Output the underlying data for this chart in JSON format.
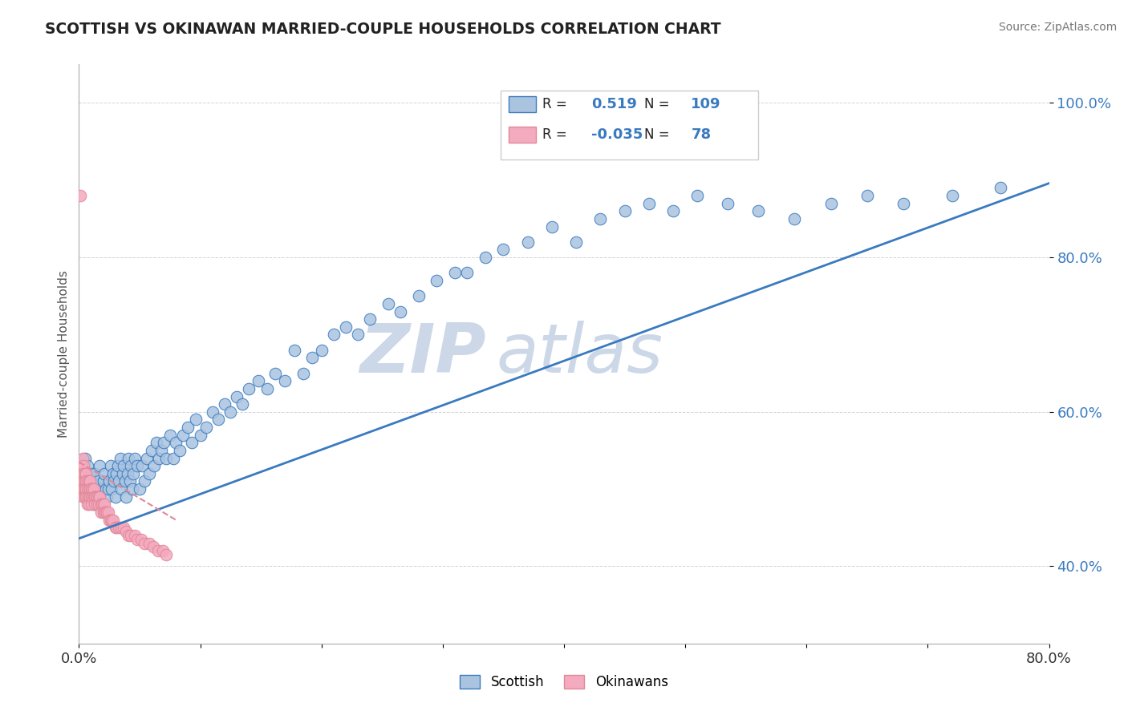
{
  "title": "SCOTTISH VS OKINAWAN MARRIED-COUPLE HOUSEHOLDS CORRELATION CHART",
  "source": "Source: ZipAtlas.com",
  "ylabel": "Married-couple Households",
  "y_ticks": [
    "40.0%",
    "60.0%",
    "80.0%",
    "100.0%"
  ],
  "y_tick_vals": [
    0.4,
    0.6,
    0.8,
    1.0
  ],
  "xlim": [
    0.0,
    0.8
  ],
  "ylim": [
    0.3,
    1.05
  ],
  "r_scottish": 0.519,
  "n_scottish": 109,
  "r_okinawan": -0.035,
  "n_okinawan": 78,
  "scottish_color": "#aac4e0",
  "okinawan_color": "#f4aabf",
  "trend_scottish_color": "#3a7abf",
  "trend_okinawan_color": "#e08898",
  "watermark": "ZIPatlas",
  "watermark_color": "#ccd8e8",
  "scottish_trend_x": [
    0.0,
    0.8
  ],
  "scottish_trend_y": [
    0.436,
    0.896
  ],
  "okinawan_trend_x": [
    0.0,
    0.08
  ],
  "okinawan_trend_y": [
    0.535,
    0.46
  ],
  "scottish_x": [
    0.005,
    0.006,
    0.007,
    0.008,
    0.009,
    0.01,
    0.01,
    0.011,
    0.012,
    0.013,
    0.014,
    0.015,
    0.016,
    0.017,
    0.018,
    0.019,
    0.02,
    0.021,
    0.022,
    0.023,
    0.024,
    0.025,
    0.026,
    0.027,
    0.028,
    0.029,
    0.03,
    0.031,
    0.032,
    0.033,
    0.034,
    0.035,
    0.036,
    0.037,
    0.038,
    0.039,
    0.04,
    0.041,
    0.042,
    0.043,
    0.044,
    0.045,
    0.046,
    0.048,
    0.05,
    0.052,
    0.054,
    0.056,
    0.058,
    0.06,
    0.062,
    0.064,
    0.066,
    0.068,
    0.07,
    0.072,
    0.075,
    0.078,
    0.08,
    0.083,
    0.086,
    0.09,
    0.093,
    0.096,
    0.1,
    0.105,
    0.11,
    0.115,
    0.12,
    0.125,
    0.13,
    0.135,
    0.14,
    0.148,
    0.155,
    0.162,
    0.17,
    0.178,
    0.185,
    0.192,
    0.2,
    0.21,
    0.22,
    0.23,
    0.24,
    0.255,
    0.265,
    0.28,
    0.295,
    0.31,
    0.32,
    0.335,
    0.35,
    0.37,
    0.39,
    0.41,
    0.43,
    0.45,
    0.47,
    0.49,
    0.51,
    0.535,
    0.56,
    0.59,
    0.62,
    0.65,
    0.68,
    0.72,
    0.76
  ],
  "scottish_y": [
    0.54,
    0.51,
    0.53,
    0.5,
    0.52,
    0.5,
    0.49,
    0.51,
    0.48,
    0.52,
    0.5,
    0.49,
    0.51,
    0.53,
    0.48,
    0.5,
    0.51,
    0.52,
    0.5,
    0.49,
    0.5,
    0.51,
    0.53,
    0.5,
    0.52,
    0.51,
    0.49,
    0.52,
    0.53,
    0.51,
    0.54,
    0.5,
    0.52,
    0.53,
    0.51,
    0.49,
    0.52,
    0.54,
    0.51,
    0.53,
    0.5,
    0.52,
    0.54,
    0.53,
    0.5,
    0.53,
    0.51,
    0.54,
    0.52,
    0.55,
    0.53,
    0.56,
    0.54,
    0.55,
    0.56,
    0.54,
    0.57,
    0.54,
    0.56,
    0.55,
    0.57,
    0.58,
    0.56,
    0.59,
    0.57,
    0.58,
    0.6,
    0.59,
    0.61,
    0.6,
    0.62,
    0.61,
    0.63,
    0.64,
    0.63,
    0.65,
    0.64,
    0.68,
    0.65,
    0.67,
    0.68,
    0.7,
    0.71,
    0.7,
    0.72,
    0.74,
    0.73,
    0.75,
    0.77,
    0.78,
    0.78,
    0.8,
    0.81,
    0.82,
    0.84,
    0.82,
    0.85,
    0.86,
    0.87,
    0.86,
    0.88,
    0.87,
    0.86,
    0.85,
    0.87,
    0.88,
    0.87,
    0.88,
    0.89
  ],
  "okinawan_x": [
    0.002,
    0.002,
    0.002,
    0.003,
    0.003,
    0.003,
    0.003,
    0.004,
    0.004,
    0.004,
    0.004,
    0.004,
    0.005,
    0.005,
    0.005,
    0.005,
    0.006,
    0.006,
    0.006,
    0.006,
    0.007,
    0.007,
    0.007,
    0.007,
    0.008,
    0.008,
    0.008,
    0.008,
    0.009,
    0.009,
    0.009,
    0.01,
    0.01,
    0.01,
    0.011,
    0.011,
    0.012,
    0.012,
    0.013,
    0.013,
    0.014,
    0.015,
    0.015,
    0.016,
    0.016,
    0.017,
    0.018,
    0.018,
    0.019,
    0.02,
    0.02,
    0.021,
    0.021,
    0.022,
    0.023,
    0.024,
    0.025,
    0.026,
    0.027,
    0.028,
    0.03,
    0.031,
    0.033,
    0.035,
    0.037,
    0.039,
    0.041,
    0.043,
    0.046,
    0.048,
    0.051,
    0.054,
    0.058,
    0.061,
    0.065,
    0.069,
    0.072,
    0.001
  ],
  "okinawan_y": [
    0.53,
    0.52,
    0.51,
    0.54,
    0.52,
    0.51,
    0.5,
    0.53,
    0.52,
    0.51,
    0.5,
    0.49,
    0.52,
    0.51,
    0.5,
    0.49,
    0.52,
    0.51,
    0.5,
    0.49,
    0.51,
    0.5,
    0.49,
    0.48,
    0.51,
    0.5,
    0.49,
    0.48,
    0.51,
    0.5,
    0.49,
    0.5,
    0.49,
    0.48,
    0.5,
    0.49,
    0.5,
    0.49,
    0.49,
    0.48,
    0.49,
    0.49,
    0.48,
    0.49,
    0.48,
    0.49,
    0.48,
    0.47,
    0.48,
    0.48,
    0.47,
    0.48,
    0.47,
    0.47,
    0.47,
    0.47,
    0.46,
    0.46,
    0.46,
    0.46,
    0.45,
    0.45,
    0.45,
    0.45,
    0.45,
    0.445,
    0.44,
    0.44,
    0.44,
    0.435,
    0.435,
    0.43,
    0.43,
    0.425,
    0.42,
    0.42,
    0.415,
    0.88
  ]
}
